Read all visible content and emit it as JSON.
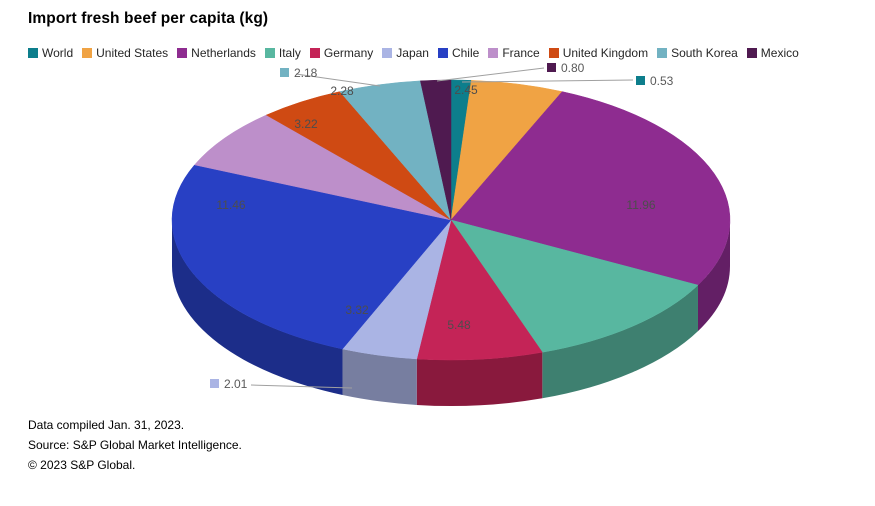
{
  "title": "Import fresh beef per capita (kg)",
  "footer": {
    "compiled": "Data compiled Jan. 31, 2023.",
    "source": "Source: S&P Global Market Intelligence.",
    "copyright": "© 2023 S&P Global."
  },
  "chart_data": {
    "type": "pie",
    "style": "3d",
    "title": "Import fresh beef per capita (kg)",
    "unit": "kg",
    "legend_position": "top",
    "value_label_format": "0.00",
    "slices": [
      {
        "label": "World",
        "value": 0.53,
        "color": "#0d7e8c"
      },
      {
        "label": "United States",
        "value": 2.45,
        "color": "#f0a344"
      },
      {
        "label": "Netherlands",
        "value": 11.96,
        "color": "#8e2c90"
      },
      {
        "label": "Italy",
        "value": 5.48,
        "color": "#58b7a0"
      },
      {
        "label": "Germany",
        "value": 3.32,
        "color": "#c42457"
      },
      {
        "label": "Japan",
        "value": 2.01,
        "color": "#aab4e4"
      },
      {
        "label": "Chile",
        "value": 11.46,
        "color": "#2840c4"
      },
      {
        "label": "France",
        "value": 3.22,
        "color": "#bd8fca"
      },
      {
        "label": "United Kingdom",
        "value": 2.28,
        "color": "#cf4a13"
      },
      {
        "label": "South Korea",
        "value": 2.18,
        "color": "#72b2c2"
      },
      {
        "label": "Mexico",
        "value": 0.8,
        "color": "#4f1a50"
      }
    ]
  }
}
